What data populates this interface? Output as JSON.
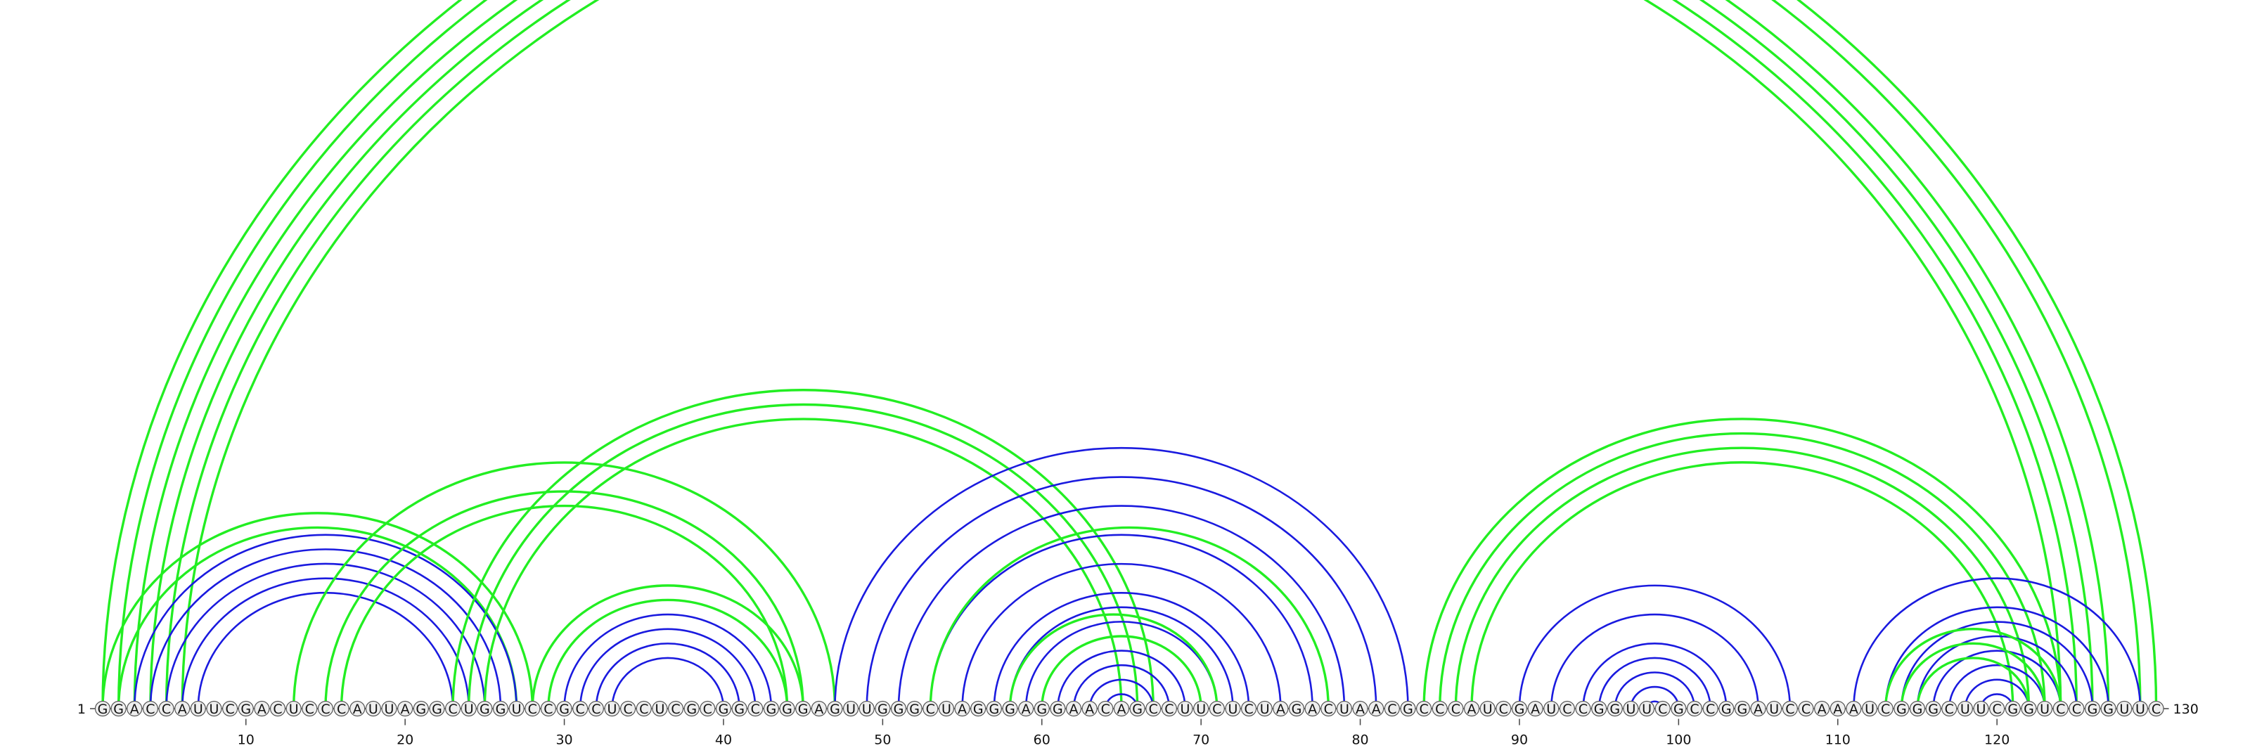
{
  "sequence": "GGACCAUUCGACUCCCAUUAGGCUGGUCCGCCUCCUCGCGGCGGGAGUUGGGCUAGGGAGGAACAGCCUUCUCUAGACUAACGCCCAUCGAUCCGGUUCGCCGGAUCCAAAUCGGGCUUCGGUCCGGUUC",
  "start_label": "1",
  "end_label": "130",
  "tick_labels": [
    "10",
    "20",
    "30",
    "40",
    "50",
    "60",
    "70",
    "80",
    "90",
    "100",
    "110",
    "120"
  ],
  "tick_positions": [
    10,
    20,
    30,
    40,
    50,
    60,
    70,
    80,
    90,
    100,
    110,
    120
  ],
  "colors": {
    "green": "#22ee22",
    "blue": "#1a1adf",
    "circle_fill": "#eeeeee",
    "circle_stroke": "#555555"
  },
  "arc_groups": [
    {
      "color": "green",
      "pairs": [
        [
          1,
          130
        ],
        [
          2,
          129
        ],
        [
          3,
          127
        ],
        [
          4,
          126
        ],
        [
          5,
          125
        ],
        [
          6,
          124
        ]
      ]
    },
    {
      "color": "green",
      "pairs": [
        [
          1,
          28
        ],
        [
          2,
          27
        ]
      ]
    },
    {
      "color": "blue",
      "pairs": [
        [
          3,
          27
        ],
        [
          4,
          26
        ],
        [
          5,
          25
        ],
        [
          6,
          24
        ],
        [
          7,
          23
        ]
      ]
    },
    {
      "color": "green",
      "pairs": [
        [
          13,
          47
        ],
        [
          15,
          45
        ],
        [
          16,
          44
        ]
      ]
    },
    {
      "color": "green",
      "pairs": [
        [
          23,
          67
        ],
        [
          24,
          66
        ],
        [
          25,
          65
        ]
      ]
    },
    {
      "color": "green",
      "pairs": [
        [
          28,
          45
        ],
        [
          29,
          44
        ]
      ]
    },
    {
      "color": "blue",
      "pairs": [
        [
          30,
          43
        ],
        [
          31,
          42
        ],
        [
          32,
          41
        ],
        [
          33,
          40
        ]
      ]
    },
    {
      "color": "blue",
      "pairs": [
        [
          47,
          83
        ],
        [
          49,
          81
        ],
        [
          51,
          79
        ],
        [
          53,
          77
        ],
        [
          55,
          75
        ],
        [
          57,
          73
        ],
        [
          58,
          72
        ],
        [
          59,
          71
        ],
        [
          60,
          70
        ],
        [
          61,
          69
        ],
        [
          62,
          68
        ],
        [
          63,
          67
        ],
        [
          64,
          66
        ]
      ]
    },
    {
      "color": "green",
      "pairs": [
        [
          53,
          78
        ],
        [
          58,
          71
        ],
        [
          60,
          70
        ]
      ]
    },
    {
      "color": "green",
      "pairs": [
        [
          84,
          124
        ],
        [
          85,
          123
        ],
        [
          86,
          122
        ],
        [
          87,
          121
        ]
      ]
    },
    {
      "color": "blue",
      "pairs": [
        [
          90,
          107
        ],
        [
          92,
          105
        ],
        [
          94,
          103
        ],
        [
          95,
          102
        ],
        [
          96,
          101
        ],
        [
          97,
          100
        ],
        [
          98,
          99
        ]
      ]
    },
    {
      "color": "blue",
      "pairs": [
        [
          111,
          129
        ],
        [
          113,
          127
        ],
        [
          114,
          126
        ],
        [
          115,
          125
        ],
        [
          116,
          124
        ],
        [
          117,
          123
        ],
        [
          118,
          122
        ],
        [
          119,
          121
        ]
      ]
    },
    {
      "color": "green",
      "pairs": [
        [
          113,
          124
        ],
        [
          114,
          123
        ],
        [
          115,
          122
        ]
      ]
    }
  ]
}
